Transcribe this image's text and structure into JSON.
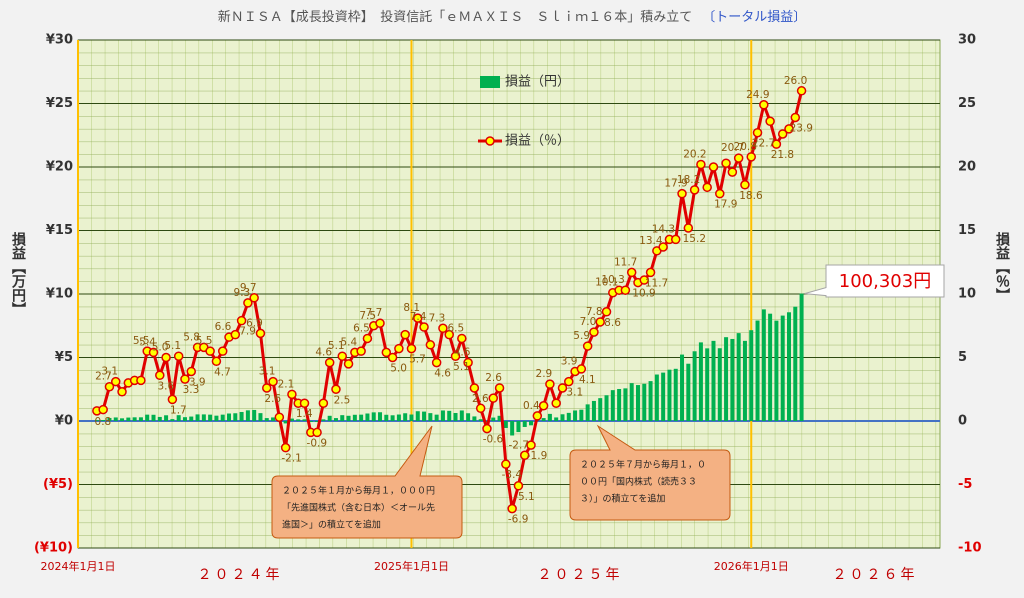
{
  "chart_data": {
    "type": "combo",
    "title": "新ＮＩＳＡ【成長投資枠】　投資信託「ｅＭＡＸＩＳ　Ｓｌｉｍ１６本」積み立て",
    "subtitle": "〔トータル損益〕",
    "y_label": "損益【万円】",
    "y2_label": "損益【％】",
    "legend": "top",
    "grid": true,
    "x": [
      3,
      4,
      5,
      6,
      7,
      8,
      9,
      10,
      11,
      12,
      13,
      14,
      15,
      16,
      17,
      18,
      19,
      20,
      21,
      22,
      23,
      24,
      25,
      26,
      27,
      28,
      29,
      30,
      31,
      32,
      33,
      34,
      35,
      36,
      37,
      38,
      39,
      40,
      41,
      42,
      43,
      44,
      45,
      46,
      47,
      48,
      49,
      50,
      51,
      52,
      53,
      54,
      55,
      56,
      57,
      58,
      59,
      60,
      61,
      62,
      63,
      64,
      65,
      66,
      67,
      68,
      69,
      70,
      71,
      72,
      73,
      74,
      75,
      76,
      77,
      78,
      79,
      80,
      81,
      82,
      83,
      84,
      85,
      86,
      87,
      88,
      89,
      90,
      91,
      92,
      93,
      94,
      95,
      96,
      97,
      98,
      99,
      100,
      101,
      102,
      103,
      104,
      105,
      106,
      107,
      108,
      109,
      110,
      111,
      112,
      113,
      114,
      115
    ],
    "xlim": [
      0,
      137
    ],
    "xticks": [
      {
        "value": 0,
        "label": "2024年1月1日"
      },
      {
        "value": 53,
        "label": "2025年1月1日"
      },
      {
        "value": 107,
        "label": "2026年1月1日"
      }
    ],
    "year_labels": [
      "２０２４年",
      "２０２５年",
      "２０２６年"
    ],
    "ylim": [
      -10,
      30
    ],
    "yticks": [
      {
        "value": 30,
        "label": "¥30"
      },
      {
        "value": 25,
        "label": "¥25"
      },
      {
        "value": 20,
        "label": "¥20"
      },
      {
        "value": 15,
        "label": "¥15"
      },
      {
        "value": 10,
        "label": "¥10"
      },
      {
        "value": 5,
        "label": "¥5"
      },
      {
        "value": 0,
        "label": "¥0"
      },
      {
        "value": -5,
        "label": "(¥5)"
      },
      {
        "value": -10,
        "label": "(¥10)"
      }
    ],
    "y2lim": [
      -10,
      30
    ],
    "y2ticks": [
      30,
      25,
      20,
      15,
      10,
      5,
      0,
      -5,
      -10
    ],
    "series": [
      {
        "name": "損益（円）",
        "type": "bar",
        "color": "#00b050",
        "values": [
          0.07,
          0.08,
          0.24,
          0.28,
          0.21,
          0.27,
          0.29,
          0.29,
          0.5,
          0.49,
          0.32,
          0.45,
          0.15,
          0.46,
          0.3,
          0.35,
          0.52,
          0.52,
          0.5,
          0.42,
          0.5,
          0.59,
          0.61,
          0.71,
          0.84,
          0.87,
          0.62,
          0.23,
          0.28,
          0.03,
          -0.19,
          0.19,
          0.13,
          0.13,
          -0.08,
          -0.08,
          0.13,
          0.41,
          0.23,
          0.46,
          0.41,
          0.49,
          0.5,
          0.59,
          0.68,
          0.69,
          0.49,
          0.45,
          0.51,
          0.61,
          0.51,
          0.77,
          0.74,
          0.62,
          0.5,
          0.83,
          0.8,
          0.63,
          0.83,
          0.61,
          0.36,
          0.14,
          -0.09,
          0.27,
          0.41,
          -0.55,
          -1.14,
          -0.87,
          -0.47,
          -0.34,
          0.07,
          0.23,
          0.56,
          0.28,
          0.53,
          0.64,
          0.83,
          0.89,
          1.31,
          1.58,
          1.8,
          2.03,
          2.43,
          2.52,
          2.57,
          2.98,
          2.83,
          2.93,
          3.14,
          3.66,
          3.81,
          4.04,
          4.11,
          5.23,
          4.51,
          5.49,
          6.19,
          5.72,
          6.31,
          5.73,
          6.6,
          6.46,
          6.92,
          6.31,
          7.15,
          7.91,
          8.79,
          8.45,
          7.9,
          8.3,
          8.56,
          9.0,
          10.0303
        ],
        "value_labels": [
          null,
          null,
          null,
          null,
          null,
          null,
          null,
          null,
          null,
          null,
          null,
          null,
          null,
          null,
          null,
          null,
          null,
          null,
          null,
          null,
          null,
          null,
          null,
          null,
          null,
          null,
          null,
          null,
          null,
          null,
          null,
          null,
          null,
          null,
          null,
          null,
          null,
          null,
          null,
          null,
          null,
          null,
          null,
          null,
          null,
          null,
          null,
          null,
          null,
          null,
          null,
          null,
          null,
          null,
          null,
          null,
          null,
          null,
          null,
          null,
          null,
          null,
          null,
          null,
          null,
          null,
          null,
          null,
          null,
          null,
          null,
          null,
          null,
          null,
          null,
          null,
          null,
          null,
          null,
          null,
          null,
          null,
          null,
          null,
          null,
          null,
          null,
          null,
          null,
          null,
          null,
          null,
          null,
          null,
          null,
          null,
          null,
          null,
          null,
          null,
          null,
          null,
          null,
          null,
          null,
          null,
          null,
          null,
          null,
          null,
          null,
          null,
          "100,303円"
        ]
      },
      {
        "name": "損益（％）",
        "type": "line",
        "axis": "y2",
        "color": "#e00000",
        "marker_color": "#ffff00",
        "values": [
          0.8,
          0.9,
          2.7,
          3.1,
          2.3,
          3.0,
          3.2,
          3.2,
          5.5,
          5.4,
          3.6,
          5.0,
          1.7,
          5.1,
          3.3,
          3.9,
          5.8,
          5.8,
          5.5,
          4.7,
          5.5,
          6.6,
          6.8,
          7.9,
          9.3,
          9.7,
          6.9,
          2.6,
          3.1,
          0.3,
          -2.1,
          2.1,
          1.4,
          1.4,
          -0.9,
          -0.9,
          1.4,
          4.6,
          2.5,
          5.1,
          4.5,
          5.4,
          5.5,
          6.5,
          7.5,
          7.7,
          5.4,
          5.0,
          5.7,
          6.8,
          5.7,
          8.1,
          7.4,
          6.0,
          4.6,
          7.3,
          6.8,
          5.1,
          6.5,
          4.6,
          2.6,
          1.0,
          -0.6,
          1.8,
          2.6,
          -3.4,
          -6.9,
          -5.1,
          -2.7,
          -1.9,
          0.4,
          1.2,
          2.9,
          1.4,
          2.6,
          3.1,
          3.9,
          4.1,
          5.9,
          7.0,
          7.8,
          8.6,
          10.1,
          10.3,
          10.3,
          11.7,
          10.9,
          11.1,
          11.7,
          13.4,
          13.7,
          14.3,
          14.3,
          17.9,
          15.2,
          18.2,
          20.2,
          18.4,
          20.0,
          17.9,
          20.3,
          19.6,
          20.7,
          18.6,
          20.8,
          22.7,
          24.9,
          23.6,
          21.8,
          22.6,
          23.0,
          23.9,
          26.0
        ],
        "value_labels": [
          "0.8",
          null,
          "2.7",
          "3.1",
          null,
          null,
          null,
          null,
          "5.5",
          "5.4",
          "3.6",
          "5.0",
          "1.7",
          "5.1",
          "3.3",
          "3.9",
          "5.8",
          null,
          "5.5",
          "4.7",
          null,
          "6.6",
          null,
          "7.9",
          "9.3",
          "9.7",
          "6.9",
          "2.6",
          "3.1",
          null,
          "-2.1",
          "2.1",
          "1.4",
          null,
          "-0.9",
          null,
          null,
          "4.6",
          "2.5",
          "5.1",
          null,
          "5.4",
          null,
          "6.5",
          "7.5",
          "7.7",
          null,
          "5.0",
          null,
          null,
          "5.7",
          "8.1",
          "7.4",
          null,
          "4.6",
          "7.3",
          null,
          "5.1",
          "6.5",
          "4.6",
          "2.6",
          null,
          "-0.6",
          null,
          "2.6",
          "-3.4",
          "-6.9",
          "-5.1",
          "-2.7",
          "-1.9",
          "0.4",
          null,
          "2.9",
          null,
          null,
          "3.1",
          "3.9",
          "4.1",
          "5.9",
          "7.0",
          "7.8",
          "8.6",
          "10.1",
          "10.3",
          null,
          "11.7",
          "10.9",
          null,
          "11.7",
          "13.4",
          null,
          "14.3",
          null,
          "17.9",
          "15.2",
          "18.2",
          "20.2",
          null,
          null,
          "17.9",
          null,
          null,
          "20.7",
          "18.6",
          "20.8",
          "22.7",
          "24.9",
          null,
          "21.8",
          null,
          null,
          "23.9",
          "26.0"
        ]
      }
    ],
    "annotations": [
      {
        "lines": [
          "２０２５年１月から毎月１，０００円",
          "「先進国株式（含む日本）＜オール先",
          "進国＞」の積立てを追加"
        ]
      },
      {
        "lines": [
          "２０２５年７月から毎月１，０",
          "００円「国内株式（読売３３",
          "３）」の積立てを追加"
        ]
      }
    ]
  }
}
